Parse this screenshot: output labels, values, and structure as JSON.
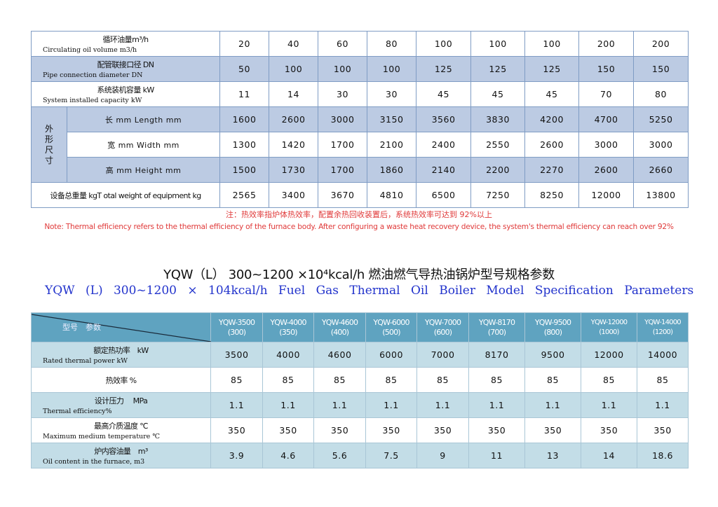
{
  "table1": {
    "rows": [
      {
        "cn": "循环油量m³/h",
        "en": "Circulating oil volume m3/h",
        "values": [
          "20",
          "40",
          "60",
          "80",
          "100",
          "100",
          "100",
          "200",
          "200"
        ]
      },
      {
        "cn": "配管联接口径 DN",
        "en": "Pipe connection diameter DN",
        "values": [
          "50",
          "100",
          "100",
          "100",
          "125",
          "125",
          "125",
          "150",
          "150"
        ]
      },
      {
        "cn": "系统装机容量 kW",
        "en": "System installed capacity kW",
        "values": [
          "11",
          "14",
          "30",
          "30",
          "45",
          "45",
          "45",
          "70",
          "80"
        ]
      }
    ],
    "dimension_group_label": "外形尺寸",
    "dimension_rows": [
      {
        "label": "长 mm Length mm",
        "values": [
          "1600",
          "2600",
          "3000",
          "3150",
          "3560",
          "3830",
          "4200",
          "4700",
          "5250"
        ]
      },
      {
        "label": "宽 mm Width mm",
        "values": [
          "1300",
          "1420",
          "1700",
          "2100",
          "2400",
          "2550",
          "2600",
          "3000",
          "3000"
        ]
      },
      {
        "label": "高 mm Height mm",
        "values": [
          "1500",
          "1730",
          "1700",
          "1860",
          "2140",
          "2200",
          "2270",
          "2600",
          "2660"
        ]
      }
    ],
    "weight_row": {
      "label": "设备总重量 kgT otal weight of equipment kg",
      "values": [
        "2565",
        "3400",
        "3670",
        "4810",
        "6500",
        "7250",
        "8250",
        "12000",
        "13800"
      ]
    }
  },
  "note_cn": "注：热效率指炉体热效率，配置余热回收装置后，系统热效率可达到 92%以上",
  "note_en": "Note: Thermal efficiency refers to the thermal efficiency of the furnace body. After configuring a waste heat recovery device, the system's thermal efficiency can reach over 92%",
  "title_cn": "YQW（L） 300~1200 ×10⁴kcal/h 燃油燃气导热油锅炉型号规格参数",
  "title_en": "YQW (L) 300~1200 × 104kcal/h Fuel Gas Thermal Oil Boiler Model Specification Parameters",
  "table2": {
    "corner_label": "型号　参数",
    "models": [
      {
        "name": "YQW-3500",
        "sub": "(300)"
      },
      {
        "name": "YQW-4000",
        "sub": "(350)"
      },
      {
        "name": "YQW-4600",
        "sub": "(400)"
      },
      {
        "name": "YQW-6000",
        "sub": "(500)"
      },
      {
        "name": "YQW-7000",
        "sub": "(600)"
      },
      {
        "name": "YQW-8170",
        "sub": "(700)"
      },
      {
        "name": "YQW-9500",
        "sub": "(800)"
      },
      {
        "name": "YQW-12000",
        "sub": "(1000)"
      },
      {
        "name": "YQW-14000",
        "sub": "(1200)"
      }
    ],
    "rows": [
      {
        "cn": "额定热功率　kW",
        "en": "Rated thermal power kW",
        "values": [
          "3500",
          "4000",
          "4600",
          "6000",
          "7000",
          "8170",
          "9500",
          "12000",
          "14000"
        ]
      },
      {
        "cn": "热效率 %",
        "en": "",
        "values": [
          "85",
          "85",
          "85",
          "85",
          "85",
          "85",
          "85",
          "85",
          "85"
        ]
      },
      {
        "cn": "设计压力　 MPa",
        "en": "Thermal efficiency%",
        "values": [
          "1.1",
          "1.1",
          "1.1",
          "1.1",
          "1.1",
          "1.1",
          "1.1",
          "1.1",
          "1.1"
        ]
      },
      {
        "cn": "最高介质温度 ℃",
        "en": "Maximum medium temperature ℃",
        "values": [
          "350",
          "350",
          "350",
          "350",
          "350",
          "350",
          "350",
          "350",
          "350"
        ]
      },
      {
        "cn": "炉内容油量　m³",
        "en": "Oil content in the furnace, m3",
        "values": [
          "3.9",
          "4.6",
          "5.6",
          "7.5",
          "9",
          "11",
          "13",
          "14",
          "18.6"
        ]
      }
    ]
  },
  "colors": {
    "table1_band": "#bccbe3",
    "table2_header": "#5fa3c0",
    "table2_band": "#c3dde7",
    "note": "#e03a3a",
    "title_en": "#2233cc"
  }
}
